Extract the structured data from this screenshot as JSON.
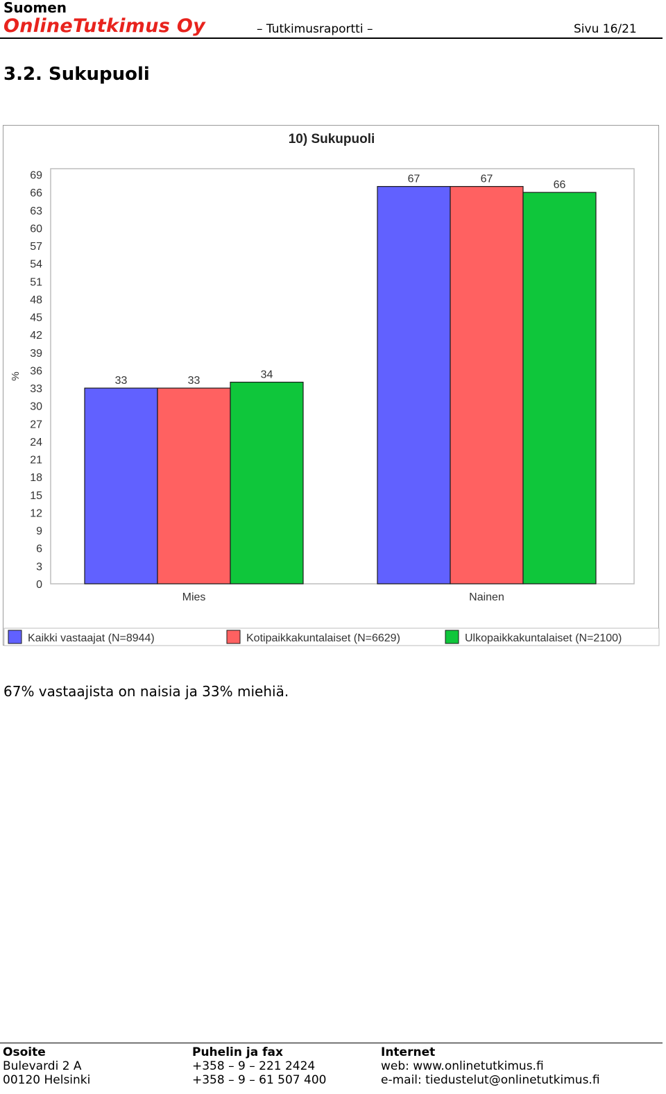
{
  "header": {
    "brand_line1": "Suomen",
    "brand_line2": "OnlineTutkimus Oy",
    "doc_type": "– Tutkimusraportti –",
    "page": "Sivu 16/21"
  },
  "section": {
    "title": "3.2. Sukupuoli"
  },
  "chart_data": {
    "type": "bar",
    "title": "10) Sukupuoli",
    "xlabel": "",
    "ylabel": "%",
    "ylim": [
      0,
      70
    ],
    "yticks": [
      0,
      3,
      6,
      9,
      12,
      15,
      18,
      21,
      24,
      27,
      30,
      33,
      36,
      39,
      42,
      45,
      48,
      51,
      54,
      57,
      60,
      63,
      66,
      69
    ],
    "grid": false,
    "legend": "bottom",
    "categories": [
      "Mies",
      "Nainen"
    ],
    "series": [
      {
        "name": "Kaikki vastaajat (N=8944)",
        "values": [
          33,
          67
        ],
        "color": "#6161ff"
      },
      {
        "name": "Kotipaikkakuntalaiset (N=6629)",
        "values": [
          33,
          67
        ],
        "color": "#ff6161"
      },
      {
        "name": "Ulkopaikkakuntalaiset (N=2100)",
        "values": [
          34,
          66
        ],
        "color": "#0fc63b"
      }
    ]
  },
  "body": {
    "summary": "67% vastaajista on naisia ja 33% miehiä."
  },
  "footer": {
    "address": {
      "heading": "Osoite",
      "line1": "Bulevardi 2 A",
      "line2": "00120 Helsinki"
    },
    "phone": {
      "heading": "Puhelin ja fax",
      "line1": "+358 – 9 – 221 2424",
      "line2": "+358 – 9 – 61 507 400"
    },
    "internet": {
      "heading": "Internet",
      "line1": "web: www.onlinetutkimus.fi",
      "line2": "e-mail: tiedustelut@onlinetutkimus.fi"
    }
  }
}
